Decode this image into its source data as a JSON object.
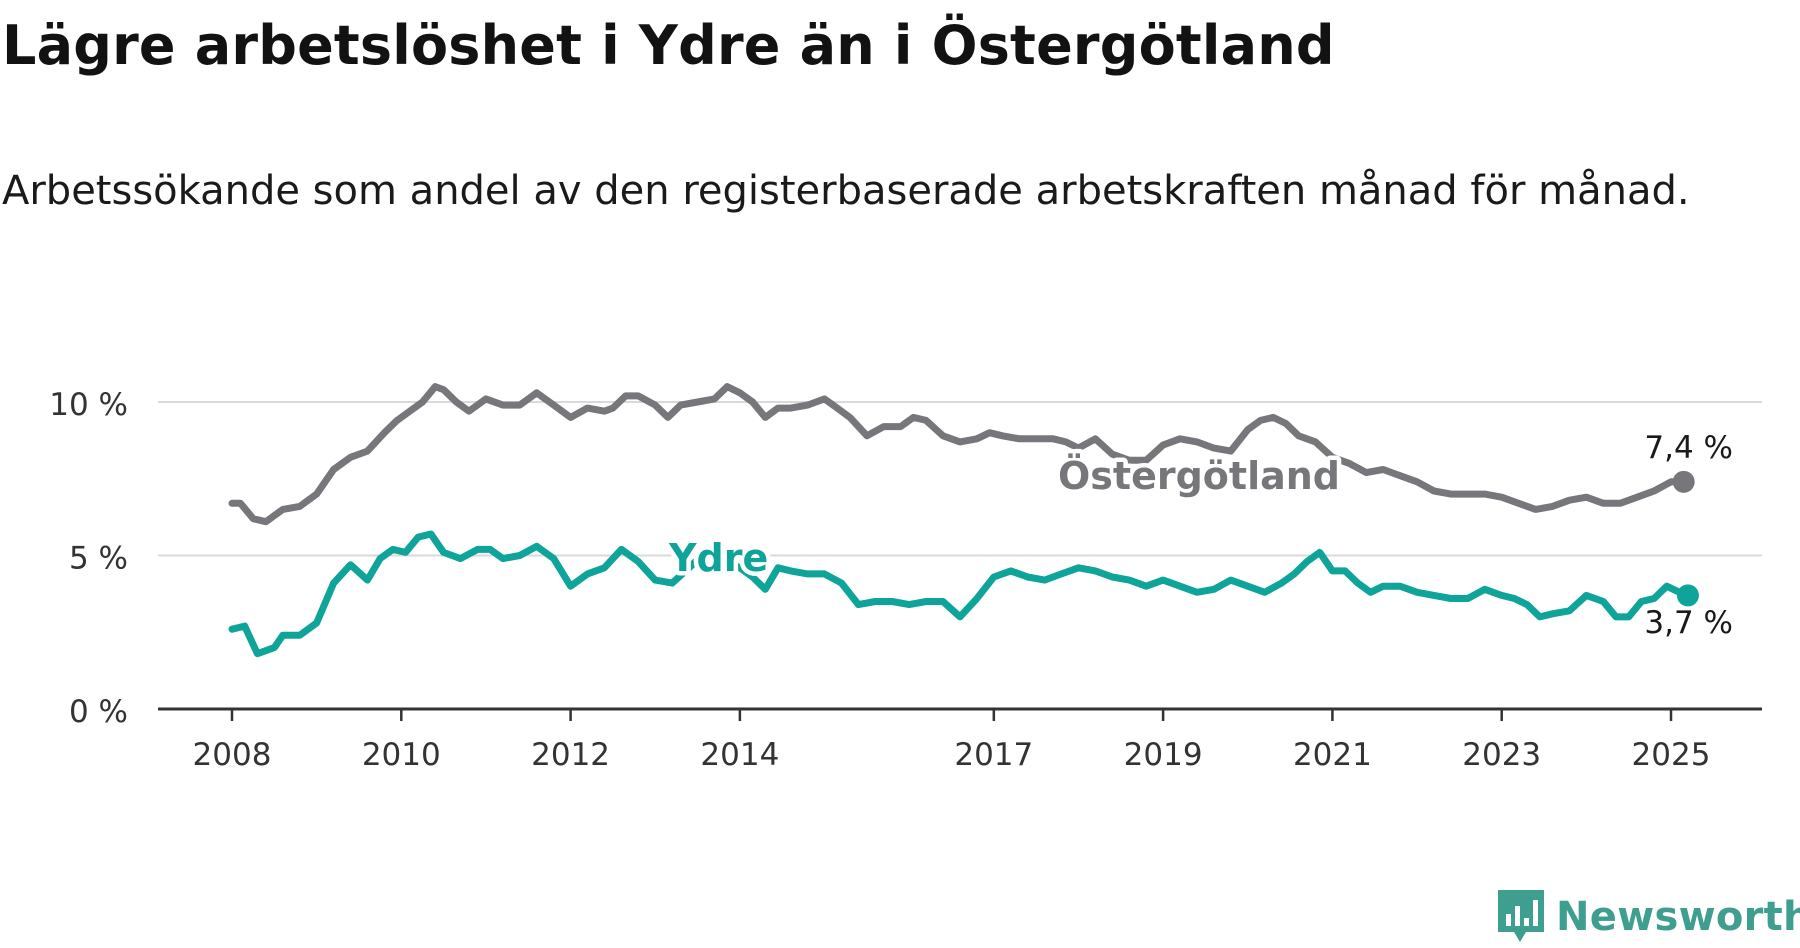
{
  "title": "Lägre arbetslöshet i Ydre än i Östergötland",
  "subtitle": "Arbetssökande som andel av den registerbaserade arbetskraften månad för månad.",
  "brand": {
    "name": "Newsworthy"
  },
  "colors": {
    "ostergotland": "#77767b",
    "ydre": "#0fa49a",
    "grid": "#d9d9d9",
    "axis": "#333333",
    "brand": "#3e9e8f"
  },
  "chart_data": {
    "type": "line",
    "title": "Lägre arbetslöshet i Ydre än i Östergötland",
    "subtitle": "Arbetssökande som andel av den registerbaserade arbetskraften månad för månad.",
    "xlabel": "",
    "ylabel": "",
    "xlim": [
      2008,
      2025.4
    ],
    "ylim": [
      0,
      10
    ],
    "x_ticks": [
      2008,
      2010,
      2012,
      2014,
      2017,
      2019,
      2021,
      2023,
      2025
    ],
    "x_tick_labels": [
      "2008",
      "2010",
      "2012",
      "2014",
      "2017",
      "2019",
      "2021",
      "2023",
      "2025"
    ],
    "y_ticks": [
      0,
      5,
      10
    ],
    "y_tick_labels": [
      "0 %",
      "5 %",
      "10 %"
    ],
    "grid": "horizontal",
    "series": [
      {
        "name": "Östergötland",
        "color": "#77767b",
        "end_label": "7,4 %",
        "points": [
          [
            2008.0,
            6.7
          ],
          [
            2008.1,
            6.7
          ],
          [
            2008.25,
            6.2
          ],
          [
            2008.4,
            6.1
          ],
          [
            2008.6,
            6.5
          ],
          [
            2008.8,
            6.6
          ],
          [
            2009.0,
            7.0
          ],
          [
            2009.2,
            7.8
          ],
          [
            2009.4,
            8.2
          ],
          [
            2009.6,
            8.4
          ],
          [
            2009.8,
            9.0
          ],
          [
            2009.95,
            9.4
          ],
          [
            2010.1,
            9.7
          ],
          [
            2010.25,
            10.0
          ],
          [
            2010.4,
            10.5
          ],
          [
            2010.5,
            10.4
          ],
          [
            2010.65,
            10.0
          ],
          [
            2010.8,
            9.7
          ],
          [
            2011.0,
            10.1
          ],
          [
            2011.2,
            9.9
          ],
          [
            2011.4,
            9.9
          ],
          [
            2011.6,
            10.3
          ],
          [
            2011.8,
            9.9
          ],
          [
            2012.0,
            9.5
          ],
          [
            2012.2,
            9.8
          ],
          [
            2012.4,
            9.7
          ],
          [
            2012.5,
            9.8
          ],
          [
            2012.65,
            10.2
          ],
          [
            2012.8,
            10.2
          ],
          [
            2013.0,
            9.9
          ],
          [
            2013.15,
            9.5
          ],
          [
            2013.3,
            9.9
          ],
          [
            2013.5,
            10.0
          ],
          [
            2013.7,
            10.1
          ],
          [
            2013.85,
            10.5
          ],
          [
            2014.0,
            10.3
          ],
          [
            2014.15,
            10.0
          ],
          [
            2014.3,
            9.5
          ],
          [
            2014.45,
            9.8
          ],
          [
            2014.6,
            9.8
          ],
          [
            2014.8,
            9.9
          ],
          [
            2015.0,
            10.1
          ],
          [
            2015.15,
            9.8
          ],
          [
            2015.3,
            9.5
          ],
          [
            2015.5,
            8.9
          ],
          [
            2015.7,
            9.2
          ],
          [
            2015.9,
            9.2
          ],
          [
            2016.05,
            9.5
          ],
          [
            2016.2,
            9.4
          ],
          [
            2016.4,
            8.9
          ],
          [
            2016.6,
            8.7
          ],
          [
            2016.8,
            8.8
          ],
          [
            2016.95,
            9.0
          ],
          [
            2017.1,
            8.9
          ],
          [
            2017.3,
            8.8
          ],
          [
            2017.5,
            8.8
          ],
          [
            2017.7,
            8.8
          ],
          [
            2017.85,
            8.7
          ],
          [
            2018.0,
            8.5
          ],
          [
            2018.2,
            8.8
          ],
          [
            2018.4,
            8.3
          ],
          [
            2018.6,
            8.1
          ],
          [
            2018.8,
            8.1
          ],
          [
            2019.0,
            8.6
          ],
          [
            2019.2,
            8.8
          ],
          [
            2019.4,
            8.7
          ],
          [
            2019.6,
            8.5
          ],
          [
            2019.8,
            8.4
          ],
          [
            2020.0,
            9.1
          ],
          [
            2020.15,
            9.4
          ],
          [
            2020.3,
            9.5
          ],
          [
            2020.45,
            9.3
          ],
          [
            2020.6,
            8.9
          ],
          [
            2020.8,
            8.7
          ],
          [
            2021.0,
            8.2
          ],
          [
            2021.2,
            8.0
          ],
          [
            2021.4,
            7.7
          ],
          [
            2021.6,
            7.8
          ],
          [
            2021.8,
            7.6
          ],
          [
            2022.0,
            7.4
          ],
          [
            2022.2,
            7.1
          ],
          [
            2022.4,
            7.0
          ],
          [
            2022.6,
            7.0
          ],
          [
            2022.8,
            7.0
          ],
          [
            2023.0,
            6.9
          ],
          [
            2023.2,
            6.7
          ],
          [
            2023.4,
            6.5
          ],
          [
            2023.6,
            6.6
          ],
          [
            2023.8,
            6.8
          ],
          [
            2024.0,
            6.9
          ],
          [
            2024.2,
            6.7
          ],
          [
            2024.4,
            6.7
          ],
          [
            2024.6,
            6.9
          ],
          [
            2024.8,
            7.1
          ],
          [
            2025.0,
            7.4
          ],
          [
            2025.15,
            7.4
          ]
        ]
      },
      {
        "name": "Ydre",
        "color": "#0fa49a",
        "end_label": "3,7 %",
        "points": [
          [
            2008.0,
            2.6
          ],
          [
            2008.15,
            2.7
          ],
          [
            2008.3,
            1.8
          ],
          [
            2008.5,
            2.0
          ],
          [
            2008.6,
            2.4
          ],
          [
            2008.8,
            2.4
          ],
          [
            2009.0,
            2.8
          ],
          [
            2009.2,
            4.1
          ],
          [
            2009.4,
            4.7
          ],
          [
            2009.6,
            4.2
          ],
          [
            2009.75,
            4.9
          ],
          [
            2009.9,
            5.2
          ],
          [
            2010.05,
            5.1
          ],
          [
            2010.2,
            5.6
          ],
          [
            2010.35,
            5.7
          ],
          [
            2010.5,
            5.1
          ],
          [
            2010.7,
            4.9
          ],
          [
            2010.9,
            5.2
          ],
          [
            2011.05,
            5.2
          ],
          [
            2011.2,
            4.9
          ],
          [
            2011.4,
            5.0
          ],
          [
            2011.6,
            5.3
          ],
          [
            2011.8,
            4.9
          ],
          [
            2012.0,
            4.0
          ],
          [
            2012.2,
            4.4
          ],
          [
            2012.4,
            4.6
          ],
          [
            2012.6,
            5.2
          ],
          [
            2012.8,
            4.8
          ],
          [
            2013.0,
            4.2
          ],
          [
            2013.2,
            4.1
          ],
          [
            2013.4,
            4.6
          ],
          [
            2013.55,
            5.0
          ],
          [
            2013.7,
            4.8
          ],
          [
            2013.85,
            4.8
          ],
          [
            2014.0,
            4.6
          ],
          [
            2014.15,
            4.3
          ],
          [
            2014.3,
            3.9
          ],
          [
            2014.45,
            4.6
          ],
          [
            2014.6,
            4.5
          ],
          [
            2014.8,
            4.4
          ],
          [
            2015.0,
            4.4
          ],
          [
            2015.2,
            4.1
          ],
          [
            2015.4,
            3.4
          ],
          [
            2015.6,
            3.5
          ],
          [
            2015.8,
            3.5
          ],
          [
            2016.0,
            3.4
          ],
          [
            2016.2,
            3.5
          ],
          [
            2016.4,
            3.5
          ],
          [
            2016.6,
            3.0
          ],
          [
            2016.8,
            3.6
          ],
          [
            2017.0,
            4.3
          ],
          [
            2017.2,
            4.5
          ],
          [
            2017.4,
            4.3
          ],
          [
            2017.6,
            4.2
          ],
          [
            2017.8,
            4.4
          ],
          [
            2018.0,
            4.6
          ],
          [
            2018.2,
            4.5
          ],
          [
            2018.4,
            4.3
          ],
          [
            2018.6,
            4.2
          ],
          [
            2018.8,
            4.0
          ],
          [
            2019.0,
            4.2
          ],
          [
            2019.2,
            4.0
          ],
          [
            2019.4,
            3.8
          ],
          [
            2019.6,
            3.9
          ],
          [
            2019.8,
            4.2
          ],
          [
            2020.0,
            4.0
          ],
          [
            2020.2,
            3.8
          ],
          [
            2020.4,
            4.1
          ],
          [
            2020.55,
            4.4
          ],
          [
            2020.7,
            4.8
          ],
          [
            2020.85,
            5.1
          ],
          [
            2021.0,
            4.5
          ],
          [
            2021.15,
            4.5
          ],
          [
            2021.3,
            4.1
          ],
          [
            2021.45,
            3.8
          ],
          [
            2021.6,
            4.0
          ],
          [
            2021.8,
            4.0
          ],
          [
            2022.0,
            3.8
          ],
          [
            2022.2,
            3.7
          ],
          [
            2022.4,
            3.6
          ],
          [
            2022.6,
            3.6
          ],
          [
            2022.8,
            3.9
          ],
          [
            2023.0,
            3.7
          ],
          [
            2023.15,
            3.6
          ],
          [
            2023.3,
            3.4
          ],
          [
            2023.45,
            3.0
          ],
          [
            2023.6,
            3.1
          ],
          [
            2023.8,
            3.2
          ],
          [
            2024.0,
            3.7
          ],
          [
            2024.2,
            3.5
          ],
          [
            2024.35,
            3.0
          ],
          [
            2024.5,
            3.0
          ],
          [
            2024.65,
            3.5
          ],
          [
            2024.8,
            3.6
          ],
          [
            2024.95,
            4.0
          ],
          [
            2025.1,
            3.8
          ],
          [
            2025.2,
            3.7
          ]
        ]
      }
    ]
  }
}
